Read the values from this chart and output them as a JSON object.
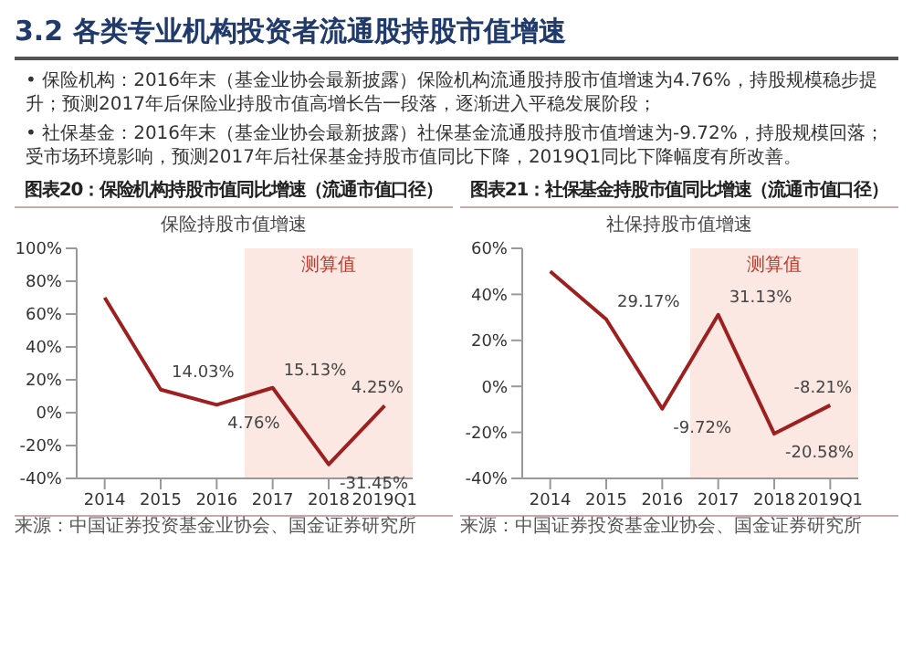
{
  "chart_data": [
    {
      "type": "other",
      "title": "3.2 各类专业机构投资者流通股持股市值增速",
      "annotations": [
        "• 保险机构：2016年末（基金业协会最新披露）保险机构流通股持股市值增速为4.76%，持股规模稳步提升；预测2017年后保险业持股市值高增长告一段落，逐渐进入平稳发展阶段；",
        "• 社保基金：2016年末（基金业协会最新披露）社保基金流通股持股市值增速为-9.72%，持股规模回落；受市场环境影响，预测2017年后社保基金持股市值同比下降，2019Q1同比下降幅度有所改善。"
      ]
    },
    {
      "type": "line",
      "title": "图表20：保险机构持股市值同比增速（流通市值口径）",
      "subtitle": "保险持股市值增速",
      "categories": [
        "2014",
        "2015",
        "2016",
        "2017",
        "2018",
        "2019Q1"
      ],
      "series": [
        {
          "color": "#9e1f1f",
          "values": [
            70,
            14.03,
            4.76,
            15.13,
            -31.45,
            4.25
          ],
          "value_labels": [
            null,
            "14.03%",
            "4.76%",
            "15.13%",
            "-31.45%",
            "4.25%"
          ]
        }
      ],
      "ylim": [
        -40,
        100
      ],
      "yticks": [
        {
          "value": -40,
          "label": "-40%"
        },
        {
          "value": -20,
          "label": "-20%"
        },
        {
          "value": 0,
          "label": "0%"
        },
        {
          "value": 20,
          "label": "20%"
        },
        {
          "value": 40,
          "label": "40%"
        },
        {
          "value": 60,
          "label": "60%"
        },
        {
          "value": 80,
          "label": "80%"
        },
        {
          "value": 100,
          "label": "100%"
        }
      ],
      "bands": [
        {
          "axis": "x",
          "from": "2017",
          "to": "2019Q1",
          "label": "测算值",
          "color": "#fbe8e2"
        }
      ],
      "marker": "none",
      "grid": false,
      "legend": false,
      "annotations": [
        "来源：中国证券投资基金业协会、国金证券研究所"
      ]
    },
    {
      "type": "line",
      "title": "图表21：社保基金持股市值同比增速（流通市值口径）",
      "subtitle": "社保持股市值增速",
      "categories": [
        "2014",
        "2015",
        "2016",
        "2017",
        "2018",
        "2019Q1"
      ],
      "series": [
        {
          "color": "#9e1f1f",
          "values": [
            50,
            29.17,
            -9.72,
            31.13,
            -20.58,
            -8.21
          ],
          "value_labels": [
            null,
            "29.17%",
            "-9.72%",
            "31.13%",
            "-20.58%",
            "-8.21%"
          ]
        }
      ],
      "ylim": [
        -40,
        60
      ],
      "yticks": [
        {
          "value": -40,
          "label": "-40%"
        },
        {
          "value": -20,
          "label": "-20%"
        },
        {
          "value": 0,
          "label": "0%"
        },
        {
          "value": 20,
          "label": "20%"
        },
        {
          "value": 40,
          "label": "40%"
        },
        {
          "value": 60,
          "label": "60%"
        }
      ],
      "bands": [
        {
          "axis": "x",
          "from": "2017",
          "to": "2019Q1",
          "label": "测算值",
          "color": "#fbe8e2"
        }
      ],
      "marker": "none",
      "grid": false,
      "legend": false,
      "annotations": [
        "来源：中国证券投资基金业协会、国金证券研究所"
      ]
    }
  ]
}
